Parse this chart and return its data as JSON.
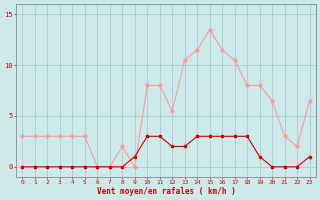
{
  "x": [
    0,
    1,
    2,
    3,
    4,
    5,
    6,
    7,
    8,
    9,
    10,
    11,
    12,
    13,
    14,
    15,
    16,
    17,
    18,
    19,
    20,
    21,
    22,
    23
  ],
  "wind_mean": [
    0,
    0,
    0,
    0,
    0,
    0,
    0,
    0,
    0,
    1,
    3,
    3,
    2,
    2,
    3,
    3,
    3,
    3,
    3,
    1,
    0,
    0,
    0,
    1
  ],
  "wind_gust": [
    3,
    3,
    3,
    3,
    3,
    3,
    0,
    0,
    2,
    0,
    8,
    8,
    5.5,
    10.5,
    11.5,
    13.5,
    11.5,
    10.5,
    8,
    8,
    6.5,
    3,
    2,
    6.5
  ],
  "bg_color": "#cdeaea",
  "grid_color": "#aacccc",
  "mean_color": "#cc0000",
  "gust_color": "#ff9999",
  "xlabel": "Vent moyen/en rafales ( km/h )",
  "xlabel_color": "#cc0000",
  "tick_color": "#cc0000",
  "axis_color": "#888888",
  "ylim": [
    -1,
    16
  ],
  "yticks": [
    0,
    5,
    10,
    15
  ],
  "xlim": [
    -0.5,
    23.5
  ]
}
